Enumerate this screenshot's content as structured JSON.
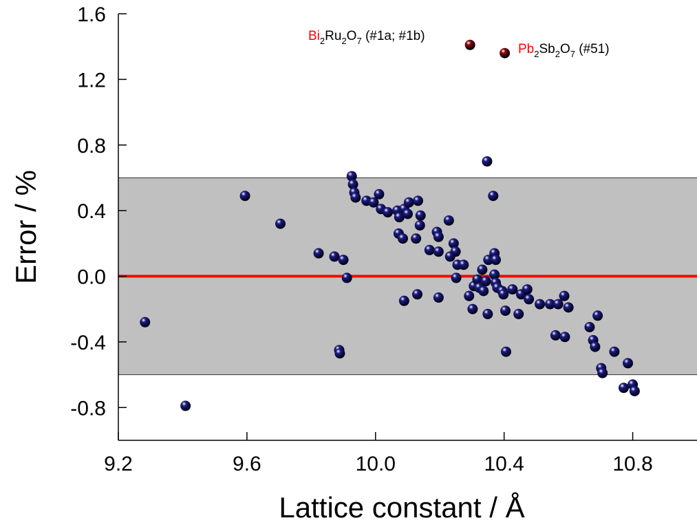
{
  "chart_data": {
    "type": "scatter",
    "xlabel": "Lattice constant / Å",
    "ylabel": "Error / %",
    "xlim": [
      9.2,
      11.0
    ],
    "ylim": [
      -1.0,
      1.6
    ],
    "xticks": [
      9.2,
      9.6,
      {
        "value": 10.0,
        "label": "10.0"
      },
      10.4,
      10.8
    ],
    "yticks": [
      {
        "value": -0.8,
        "label": "-0.8"
      },
      {
        "value": -0.4,
        "label": "-0.4"
      },
      {
        "value": 0.0,
        "label": "0.0"
      },
      0.4,
      0.8,
      1.2,
      1.6
    ],
    "band": [
      -0.6,
      0.6
    ],
    "band_color": "#c0c0c0",
    "reference_line": 0,
    "reference_color": "#ff0000",
    "series": [
      {
        "color": "#1c1c82",
        "x": [
          9.283,
          9.409,
          9.594,
          9.704,
          9.823,
          9.872,
          9.9,
          9.887,
          9.889,
          9.911,
          9.926,
          9.93,
          9.934,
          9.938,
          9.972,
          9.994,
          10.011,
          10.017,
          10.038,
          10.068,
          10.074,
          10.089,
          10.1,
          10.104,
          10.132,
          10.14,
          10.138,
          10.072,
          10.085,
          10.126,
          10.089,
          10.13,
          10.168,
          10.196,
          10.191,
          10.196,
          10.228,
          10.243,
          10.249,
          10.232,
          10.255,
          10.274,
          10.196,
          10.251,
          10.291,
          10.302,
          10.306,
          10.317,
          10.323,
          10.332,
          10.336,
          10.343,
          10.347,
          10.351,
          10.349,
          10.366,
          10.37,
          10.374,
          10.37,
          10.374,
          10.379,
          10.394,
          10.398,
          10.404,
          10.406,
          10.426,
          10.445,
          10.453,
          10.472,
          10.477,
          10.511,
          10.543,
          10.568,
          10.56,
          10.587,
          10.589,
          10.6,
          10.666,
          10.677,
          10.683,
          10.691,
          10.702,
          10.706,
          10.743,
          10.772,
          10.785,
          10.8,
          10.806
        ],
        "values": [
          -0.28,
          -0.79,
          0.49,
          0.32,
          0.14,
          0.12,
          0.1,
          -0.45,
          -0.47,
          -0.01,
          0.61,
          0.56,
          0.51,
          0.48,
          0.46,
          0.45,
          0.5,
          0.41,
          0.39,
          0.4,
          0.36,
          0.41,
          0.38,
          0.45,
          0.46,
          0.37,
          0.31,
          0.26,
          0.23,
          0.23,
          -0.15,
          -0.11,
          0.16,
          0.15,
          0.27,
          0.24,
          0.34,
          0.2,
          0.15,
          0.12,
          0.07,
          0.07,
          -0.13,
          -0.01,
          -0.12,
          -0.2,
          -0.06,
          -0.02,
          -0.07,
          0.04,
          -0.09,
          -0.03,
          0.7,
          0.1,
          -0.23,
          0.49,
          0.14,
          0.1,
          0.01,
          -0.04,
          -0.07,
          -0.09,
          -0.11,
          -0.21,
          -0.46,
          -0.08,
          -0.23,
          -0.11,
          -0.08,
          -0.14,
          -0.17,
          -0.17,
          -0.17,
          -0.36,
          -0.12,
          -0.37,
          -0.19,
          -0.31,
          -0.39,
          -0.43,
          -0.24,
          -0.56,
          -0.59,
          -0.46,
          -0.68,
          -0.53,
          -0.66,
          -0.7
        ]
      },
      {
        "color": "#8b0a0a",
        "x": [
          10.294,
          10.402
        ],
        "values": [
          1.41,
          1.36
        ]
      }
    ],
    "annotations": [
      [
        {
          "text": "Bi",
          "color": "#ff0000"
        },
        {
          "text": "2",
          "sub": true
        },
        {
          "text": "Ru"
        },
        {
          "text": "2",
          "sub": true
        },
        {
          "text": "O"
        },
        {
          "text": "7",
          "sub": true
        },
        {
          "text": " (#1a; #1b)"
        }
      ],
      [
        {
          "text": "Pb",
          "color": "#ff0000"
        },
        {
          "text": "2",
          "sub": true
        },
        {
          "text": "Sb"
        },
        {
          "text": "2",
          "sub": true
        },
        {
          "text": "O"
        },
        {
          "text": "7",
          "sub": true
        },
        {
          "text": " (#51)"
        }
      ]
    ]
  }
}
